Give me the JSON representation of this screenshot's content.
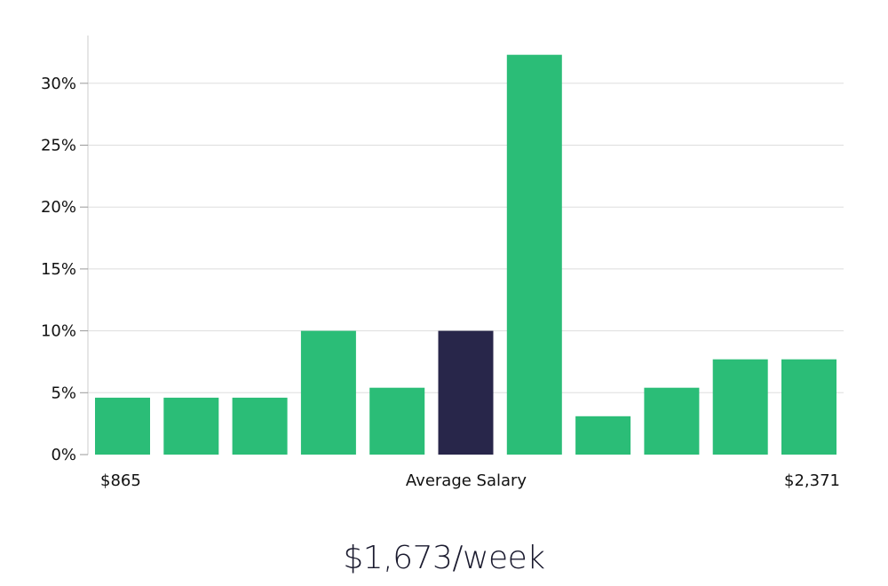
{
  "chart_data": {
    "type": "bar",
    "values": [
      4.6,
      4.6,
      4.6,
      10.0,
      5.4,
      10.0,
      32.3,
      3.1,
      5.4,
      7.7,
      7.7
    ],
    "highlight_index": 5,
    "y_ticks": [
      "0%",
      "5%",
      "10%",
      "15%",
      "20%",
      "25%",
      "30%"
    ],
    "ylim": [
      0,
      34
    ],
    "grid": true,
    "x_labels": {
      "left": "$865",
      "center": "Average Salary",
      "right": "$2,371"
    },
    "colors": {
      "bar": "#2bbd77",
      "highlight": "#28264a",
      "grid": "#dddddd",
      "axis": "#cccccc"
    }
  },
  "summary": "$1,673/week"
}
